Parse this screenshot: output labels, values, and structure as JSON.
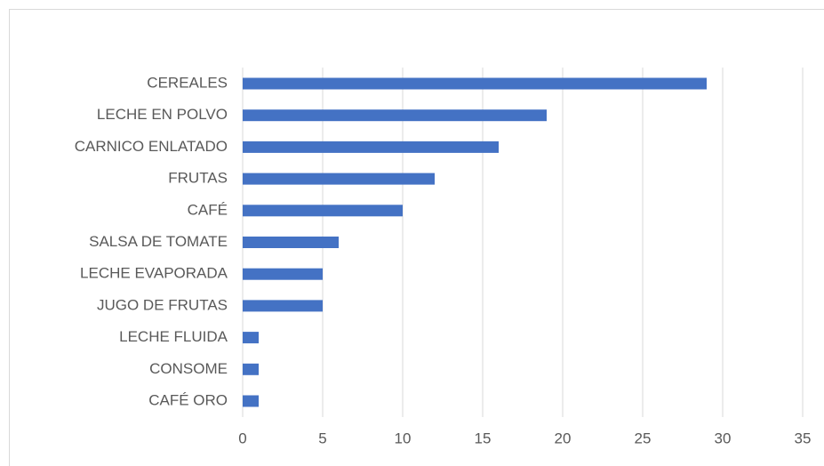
{
  "chart_data": {
    "type": "barh",
    "categories": [
      "CEREALES",
      "LECHE EN POLVO",
      "CARNICO ENLATADO",
      "FRUTAS",
      "CAFÉ",
      "SALSA DE TOMATE",
      "LECHE EVAPORADA",
      "JUGO DE FRUTAS",
      "LECHE FLUIDA",
      "CONSOME",
      "CAFÉ ORO"
    ],
    "values": [
      29,
      19,
      16,
      12,
      10,
      6,
      5,
      5,
      1,
      1,
      1
    ],
    "color": "#4472c4",
    "xlim": [
      0,
      35
    ],
    "xticks": [
      0,
      5,
      10,
      15,
      20,
      25,
      30,
      35
    ],
    "grid": true
  }
}
